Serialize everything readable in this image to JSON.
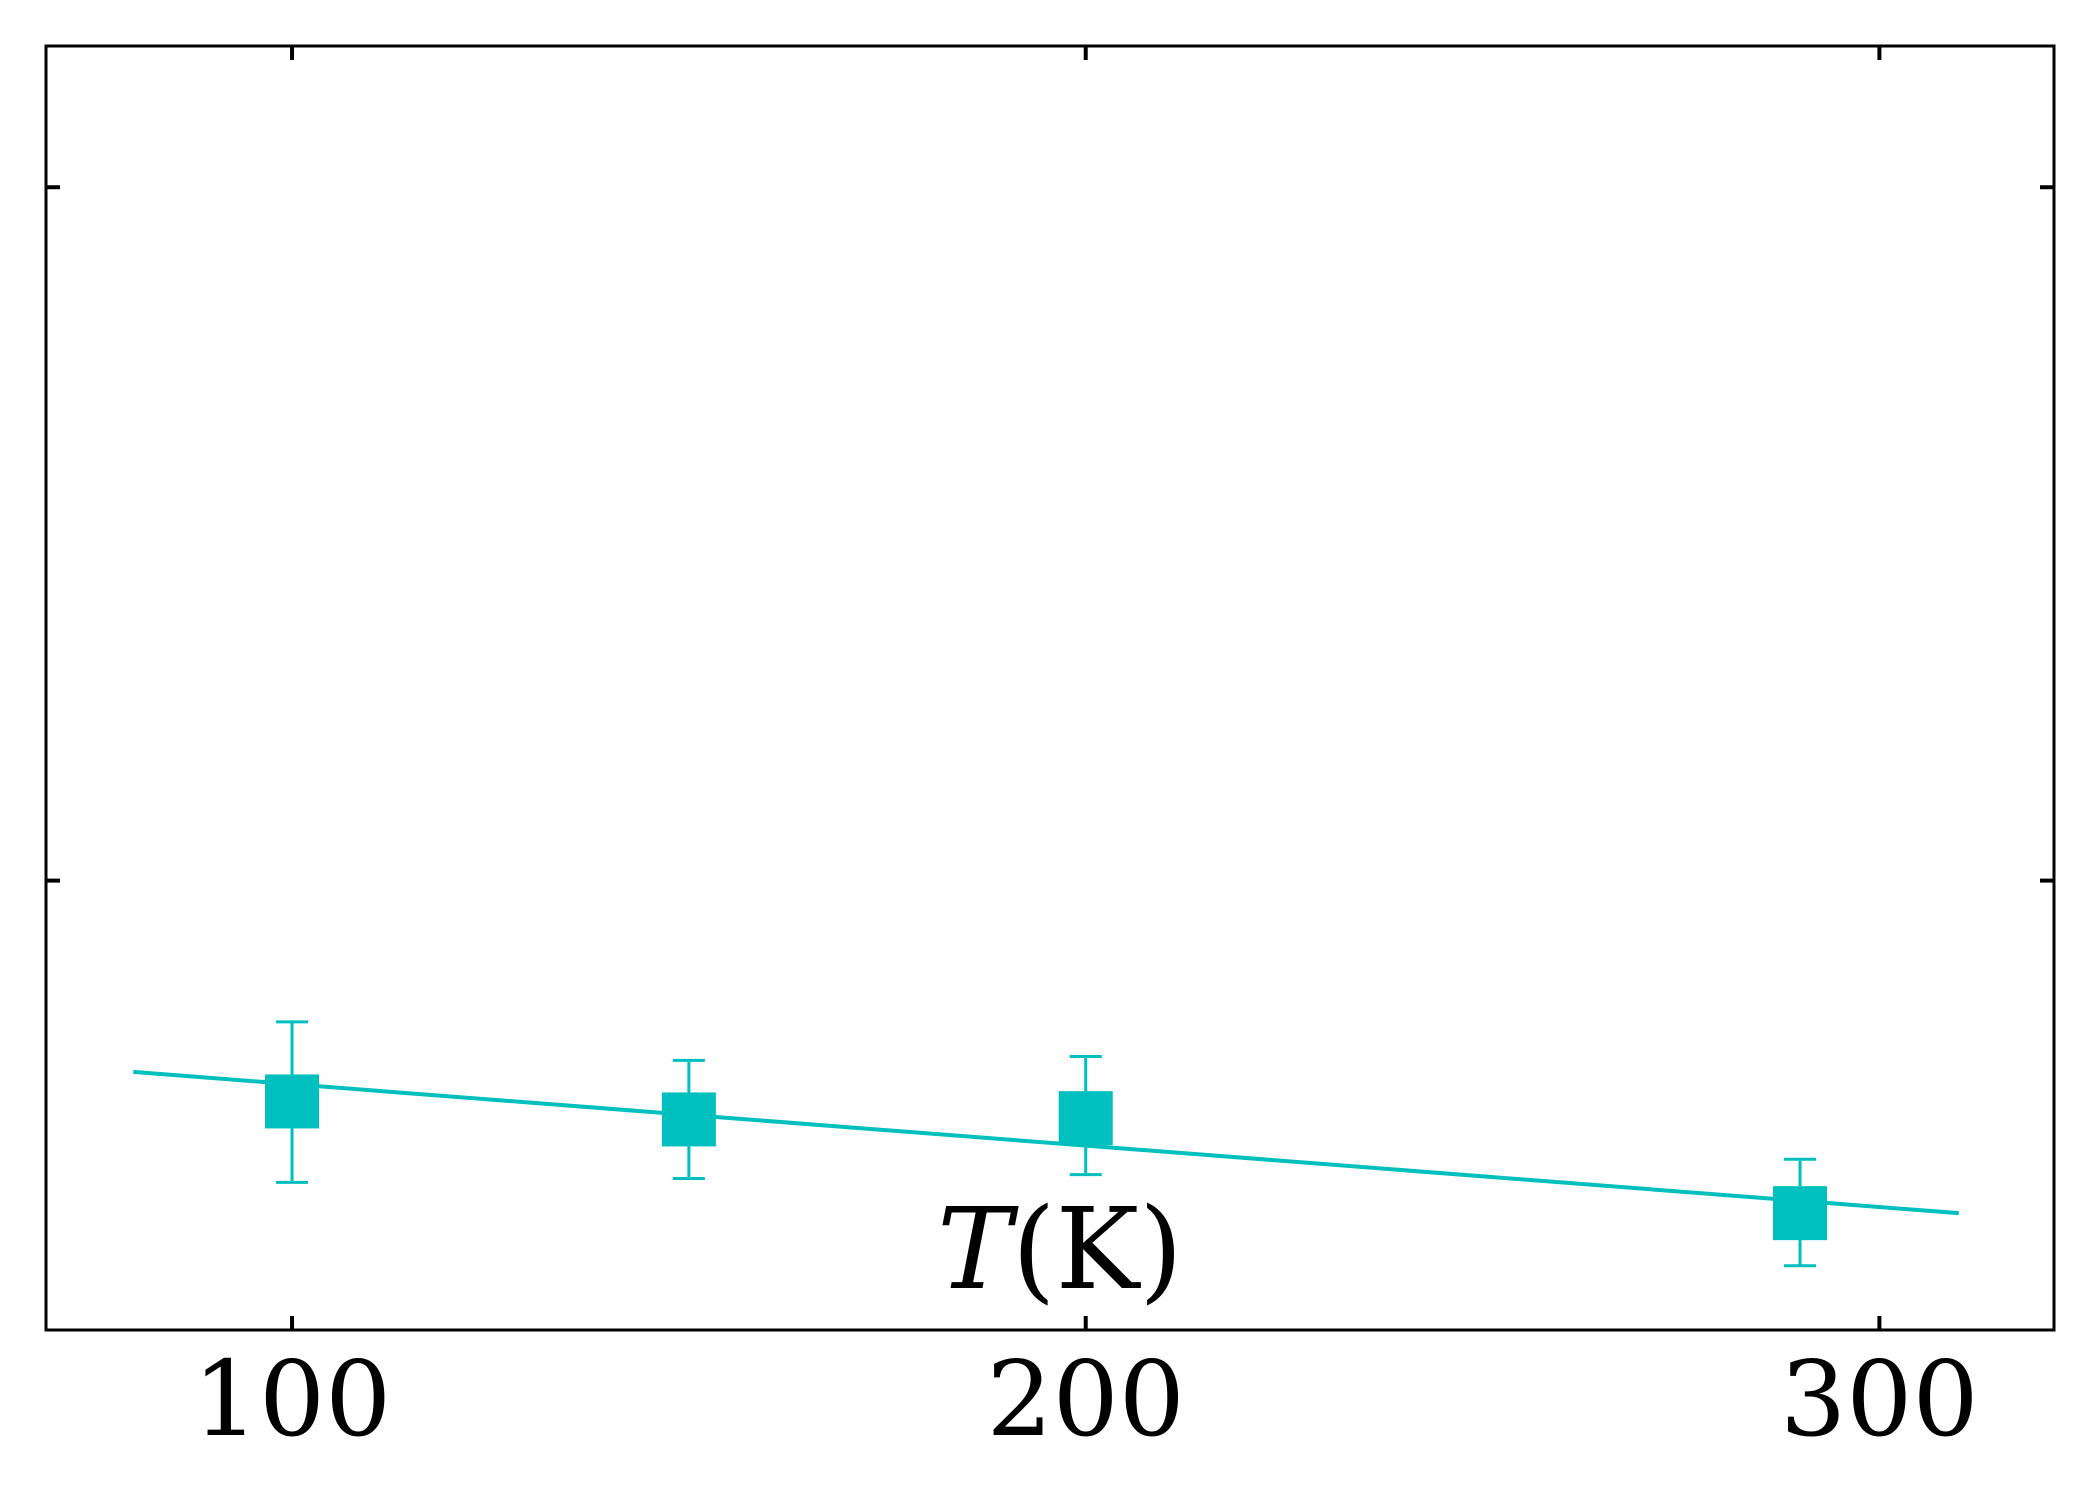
{
  "chart_data": {
    "type": "scatter",
    "xlabel_var": "T",
    "xlabel_unit": "(K)",
    "xlim": [
      69,
      322
    ],
    "ylim": [
      0,
      1
    ],
    "x_ticks": [
      100,
      200,
      300
    ],
    "x_tick_labels": [
      "100",
      "200",
      "300"
    ],
    "y_ticks": [
      0.35,
      0.89
    ],
    "grid": false,
    "color": "#00bfbf",
    "series": [
      {
        "marker": "square",
        "x": [
          100,
          150,
          200,
          290
        ],
        "y": [
          0.178,
          0.164,
          0.165,
          0.091
        ],
        "yerr_low": [
          0.063,
          0.046,
          0.044,
          0.041
        ],
        "yerr_high": [
          0.062,
          0.046,
          0.048,
          0.042
        ]
      }
    ],
    "fit_line": {
      "x": [
        80,
        310
      ],
      "y": [
        0.201,
        0.091
      ]
    }
  }
}
